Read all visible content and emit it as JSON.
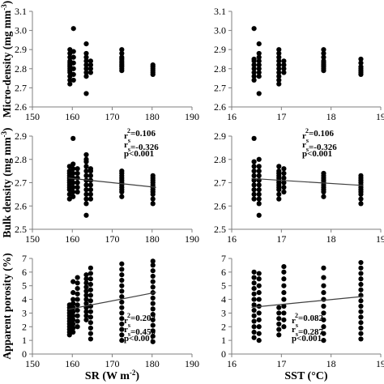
{
  "chart_data": [
    {
      "type": "scatter",
      "row": 0,
      "col": 0,
      "ylabel_parts": [
        "Micro-density (mg mm",
        "-3",
        ")"
      ],
      "xlabel_parts": [],
      "xlim": [
        150,
        190
      ],
      "xticks": [
        "150",
        "160",
        "170",
        "180",
        "190"
      ],
      "ylim": [
        2.6,
        3.1
      ],
      "yticks": [
        "2.6",
        "2.7",
        "2.8",
        "2.9",
        "3.0",
        "3.1"
      ],
      "ytick_values": [
        2.6,
        2.7,
        2.8,
        2.9,
        3.0,
        3.1
      ],
      "xtick_values": [
        150,
        160,
        170,
        180,
        190
      ],
      "columns": [
        {
          "x": 159.4,
          "y": [
            2.72,
            2.74,
            2.76,
            2.78,
            2.79,
            2.8,
            2.81,
            2.82,
            2.83,
            2.84,
            2.86,
            2.88,
            2.9
          ]
        },
        {
          "x": 160.3,
          "y": [
            2.74,
            2.77,
            2.8,
            2.83,
            2.86,
            2.89,
            3.01
          ]
        },
        {
          "x": 163.5,
          "y": [
            2.67,
            2.76,
            2.78,
            2.8,
            2.82,
            2.84,
            2.86,
            2.88,
            2.93
          ]
        },
        {
          "x": 164.6,
          "y": [
            2.78,
            2.8,
            2.82,
            2.84
          ]
        },
        {
          "x": 172.4,
          "y": [
            2.79,
            2.8,
            2.81,
            2.82,
            2.83,
            2.84,
            2.85,
            2.86,
            2.88,
            2.9
          ]
        },
        {
          "x": 180.2,
          "y": [
            2.77,
            2.78,
            2.79,
            2.8,
            2.81,
            2.82
          ]
        }
      ],
      "trend": null,
      "annotation": []
    },
    {
      "type": "scatter",
      "row": 0,
      "col": 1,
      "ylabel_parts": [],
      "xlabel_parts": [],
      "xlim": [
        16,
        19
      ],
      "xticks": [
        "16",
        "17",
        "18",
        "19"
      ],
      "ylim": [
        2.6,
        3.1
      ],
      "yticks": [
        "2.6",
        "2.7",
        "2.8",
        "2.9",
        "3.0",
        "3.1"
      ],
      "ytick_values": [
        2.6,
        2.7,
        2.8,
        2.9,
        3.0,
        3.1
      ],
      "xtick_values": [
        16,
        17,
        18,
        19
      ],
      "columns": [
        {
          "x": 16.45,
          "y": [
            2.74,
            2.76,
            2.78,
            2.8,
            2.82,
            2.84,
            2.85,
            3.01
          ]
        },
        {
          "x": 16.55,
          "y": [
            2.67,
            2.76,
            2.78,
            2.8,
            2.82,
            2.84,
            2.86,
            2.88,
            2.93
          ]
        },
        {
          "x": 16.95,
          "y": [
            2.72,
            2.74,
            2.76,
            2.78,
            2.8,
            2.82,
            2.84,
            2.86,
            2.88,
            2.9
          ]
        },
        {
          "x": 17.05,
          "y": [
            2.78,
            2.8,
            2.82,
            2.84
          ]
        },
        {
          "x": 17.85,
          "y": [
            2.79,
            2.8,
            2.81,
            2.82,
            2.83,
            2.84,
            2.86,
            2.88,
            2.9
          ]
        },
        {
          "x": 18.6,
          "y": [
            2.77,
            2.78,
            2.79,
            2.8,
            2.81,
            2.83,
            2.85
          ]
        }
      ],
      "trend": null,
      "annotation": []
    },
    {
      "type": "scatter",
      "row": 1,
      "col": 0,
      "ylabel_parts": [
        "Bulk density (mg mm",
        "-3",
        ")"
      ],
      "xlabel_parts": [],
      "xlim": [
        150,
        190
      ],
      "xticks": [
        "150",
        "160",
        "170",
        "180",
        "190"
      ],
      "ylim": [
        2.5,
        2.9
      ],
      "yticks": [
        "2.5",
        "2.6",
        "2.7",
        "2.8",
        "2.9"
      ],
      "ytick_values": [
        2.5,
        2.6,
        2.7,
        2.8,
        2.9
      ],
      "xtick_values": [
        150,
        160,
        170,
        180,
        190
      ],
      "columns": [
        {
          "x": 159.3,
          "y": [
            2.63,
            2.65,
            2.67,
            2.68,
            2.69,
            2.7,
            2.71,
            2.72,
            2.73,
            2.74,
            2.75,
            2.77
          ]
        },
        {
          "x": 160.2,
          "y": [
            2.64,
            2.66,
            2.68,
            2.7,
            2.72,
            2.74,
            2.76,
            2.78,
            2.89
          ]
        },
        {
          "x": 161.3,
          "y": [
            2.66,
            2.68,
            2.7,
            2.72,
            2.74,
            2.76
          ]
        },
        {
          "x": 163.5,
          "y": [
            2.56,
            2.61,
            2.63,
            2.65,
            2.67,
            2.69,
            2.71,
            2.73,
            2.75,
            2.77,
            2.79,
            2.8,
            2.82
          ]
        },
        {
          "x": 164.6,
          "y": [
            2.63,
            2.65,
            2.67,
            2.69,
            2.71,
            2.73,
            2.75,
            2.76
          ]
        },
        {
          "x": 172.4,
          "y": [
            2.64,
            2.66,
            2.67,
            2.68,
            2.69,
            2.7,
            2.71,
            2.72,
            2.73,
            2.74,
            2.75
          ]
        },
        {
          "x": 180.2,
          "y": [
            2.61,
            2.63,
            2.65,
            2.66,
            2.67,
            2.68,
            2.69,
            2.7,
            2.71,
            2.72,
            2.73
          ]
        }
      ],
      "trend": {
        "x": [
          159.0,
          181.0
        ],
        "y": [
          2.72,
          2.68
        ]
      },
      "annotation": [
        {
          "parts": [
            "r",
            "s",
            "2",
            "=0.106"
          ]
        },
        {
          "parts": [
            "r",
            "s",
            "",
            "=-0.326"
          ]
        },
        {
          "parts": [
            "p<0.001"
          ]
        }
      ]
    },
    {
      "type": "scatter",
      "row": 1,
      "col": 1,
      "ylabel_parts": [],
      "xlabel_parts": [],
      "xlim": [
        16,
        19
      ],
      "xticks": [
        "16",
        "17",
        "18",
        "19"
      ],
      "ylim": [
        2.5,
        2.9
      ],
      "yticks": [
        "2.5",
        "2.6",
        "2.7",
        "2.8",
        "2.9"
      ],
      "ytick_values": [
        2.5,
        2.6,
        2.7,
        2.8,
        2.9
      ],
      "xtick_values": [
        16,
        17,
        18,
        19
      ],
      "columns": [
        {
          "x": 16.45,
          "y": [
            2.63,
            2.65,
            2.67,
            2.69,
            2.71,
            2.73,
            2.75,
            2.77,
            2.79,
            2.89
          ]
        },
        {
          "x": 16.55,
          "y": [
            2.56,
            2.61,
            2.63,
            2.65,
            2.67,
            2.69,
            2.71,
            2.73,
            2.75,
            2.77,
            2.8
          ]
        },
        {
          "x": 16.95,
          "y": [
            2.63,
            2.65,
            2.67,
            2.68,
            2.69,
            2.7,
            2.71,
            2.72,
            2.73,
            2.74,
            2.75,
            2.77
          ]
        },
        {
          "x": 17.05,
          "y": [
            2.66,
            2.68,
            2.7,
            2.72,
            2.74,
            2.76
          ]
        },
        {
          "x": 17.85,
          "y": [
            2.64,
            2.66,
            2.67,
            2.68,
            2.69,
            2.7,
            2.71,
            2.72,
            2.73,
            2.74
          ]
        },
        {
          "x": 18.6,
          "y": [
            2.61,
            2.63,
            2.65,
            2.66,
            2.67,
            2.68,
            2.69,
            2.7,
            2.71,
            2.72,
            2.73
          ]
        }
      ],
      "trend": {
        "x": [
          16.4,
          18.65
        ],
        "y": [
          2.718,
          2.688
        ]
      },
      "annotation": [
        {
          "parts": [
            "r",
            "s",
            "2",
            "=0.106"
          ]
        },
        {
          "parts": [
            "r",
            "s",
            "",
            "=-0.326"
          ]
        },
        {
          "parts": [
            "p<0.001"
          ]
        }
      ]
    },
    {
      "type": "scatter",
      "row": 2,
      "col": 0,
      "ylabel_parts": [
        "Apparent porosity (%)"
      ],
      "xlabel_parts": [
        "SR (W m",
        "-2",
        ")"
      ],
      "xlim": [
        150,
        190
      ],
      "xticks": [
        "150",
        "160",
        "170",
        "180",
        "190"
      ],
      "ylim": [
        0,
        7
      ],
      "yticks": [
        "0",
        "1",
        "2",
        "3",
        "4",
        "5",
        "6",
        "7"
      ],
      "ytick_values": [
        0,
        1,
        2,
        3,
        4,
        5,
        6,
        7
      ],
      "xtick_values": [
        150,
        160,
        170,
        180,
        190
      ],
      "columns": [
        {
          "x": 159.3,
          "y": [
            1.4,
            1.6,
            1.8,
            2.0,
            2.2,
            2.4,
            2.6,
            2.8,
            3.0,
            3.2,
            3.4,
            3.6
          ]
        },
        {
          "x": 160.2,
          "y": [
            1.6,
            1.9,
            2.2,
            2.5,
            2.8,
            3.1,
            3.4,
            3.7,
            4.0,
            4.5,
            5.3
          ]
        },
        {
          "x": 161.3,
          "y": [
            2.0,
            2.4,
            2.8,
            3.2,
            3.6,
            4.0,
            4.4,
            4.8,
            5.2,
            5.6
          ]
        },
        {
          "x": 163.5,
          "y": [
            2.5,
            2.8,
            3.1,
            3.4,
            3.7,
            4.0,
            4.3,
            4.6,
            4.9,
            5.2,
            5.5,
            5.8
          ]
        },
        {
          "x": 164.6,
          "y": [
            1.1,
            1.5,
            1.9,
            2.3,
            2.7,
            3.1,
            3.5,
            3.9,
            4.3,
            4.7,
            5.1,
            5.5,
            5.9,
            6.3
          ]
        },
        {
          "x": 172.4,
          "y": [
            1.0,
            1.4,
            1.8,
            2.2,
            2.6,
            3.0,
            3.4,
            3.8,
            4.2,
            4.6,
            5.0,
            5.4,
            5.8,
            6.2,
            6.6
          ]
        },
        {
          "x": 180.2,
          "y": [
            0.9,
            1.3,
            1.7,
            2.1,
            2.5,
            2.9,
            3.3,
            3.7,
            4.1,
            4.5,
            4.9,
            5.3,
            5.7,
            6.1,
            6.5,
            6.8
          ]
        }
      ],
      "trend": {
        "x": [
          159.0,
          181.0
        ],
        "y": [
          3.27,
          4.52
        ]
      },
      "annotation": [
        {
          "parts": [
            "r",
            "s",
            "2",
            "=0.202"
          ]
        },
        {
          "parts": [
            "r",
            "s",
            "",
            "=0.450"
          ]
        },
        {
          "parts": [
            "p<0.001"
          ]
        }
      ]
    },
    {
      "type": "scatter",
      "row": 2,
      "col": 1,
      "ylabel_parts": [],
      "xlabel_parts": [
        "SST (°C)"
      ],
      "xlim": [
        16,
        19
      ],
      "xticks": [
        "16",
        "17",
        "18",
        "19"
      ],
      "ylim": [
        0,
        7
      ],
      "yticks": [
        "0",
        "1",
        "2",
        "3",
        "4",
        "5",
        "6",
        "7"
      ],
      "ytick_values": [
        0,
        1,
        2,
        3,
        4,
        5,
        6,
        7
      ],
      "xtick_values": [
        16,
        17,
        18,
        19
      ],
      "columns": [
        {
          "x": 16.45,
          "y": [
            1.2,
            1.6,
            2.0,
            2.4,
            2.8,
            3.2,
            3.6,
            4.0,
            4.4,
            4.8,
            5.2,
            5.6,
            6.0
          ]
        },
        {
          "x": 16.55,
          "y": [
            1.0,
            1.5,
            2.0,
            2.5,
            3.0,
            3.5,
            4.0,
            4.5,
            5.0,
            5.5,
            5.9
          ]
        },
        {
          "x": 16.95,
          "y": [
            1.4,
            1.8,
            2.2,
            2.6,
            3.0,
            3.4
          ]
        },
        {
          "x": 17.05,
          "y": [
            2.0,
            2.5,
            3.0,
            3.5,
            4.0,
            4.5,
            5.0,
            5.5,
            6.0,
            6.4
          ]
        },
        {
          "x": 17.85,
          "y": [
            1.0,
            1.5,
            2.0,
            2.5,
            3.0,
            3.5,
            4.0,
            4.5,
            5.0,
            5.6,
            6.3
          ]
        },
        {
          "x": 18.6,
          "y": [
            1.1,
            1.5,
            1.9,
            2.3,
            2.7,
            3.1,
            3.5,
            3.9,
            4.3,
            4.7,
            5.1,
            5.5,
            5.9,
            6.3,
            6.7
          ]
        }
      ],
      "trend": {
        "x": [
          16.4,
          18.65
        ],
        "y": [
          3.42,
          4.22
        ]
      },
      "annotation": [
        {
          "parts": [
            "r",
            "s",
            "2",
            "=0.082"
          ]
        },
        {
          "parts": [
            "r",
            "s",
            "",
            "=0.287"
          ]
        },
        {
          "parts": [
            "p<0.001"
          ]
        }
      ]
    }
  ]
}
